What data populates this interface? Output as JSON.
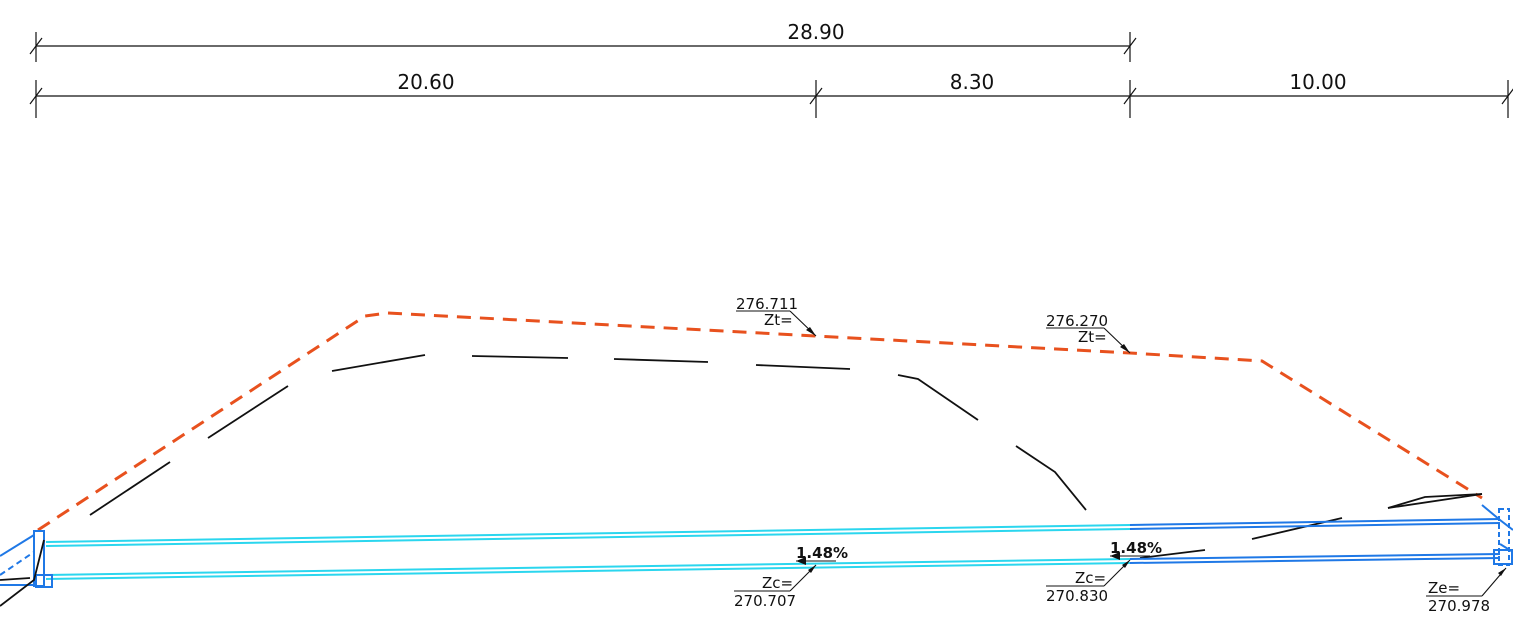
{
  "dimensions": {
    "total": "28.90",
    "seg1": "20.60",
    "seg2": "8.30",
    "seg3": "10.00"
  },
  "labels": {
    "zt1_value": "276.711",
    "zt1_label": "Zt=",
    "zt2_value": "276.270",
    "zt2_label": "Zt=",
    "slope1": "1.48%",
    "slope2": "1.48%",
    "zc1_label": "Zc=",
    "zc1_value": "270.707",
    "zc2_label": "Zc=",
    "zc2_value": "270.830",
    "ze_label": "Ze=",
    "ze_value": "270.978"
  },
  "colors": {
    "terrain": "#e8511e",
    "pipe_cyan": "#2bd6ee",
    "pipe_blue": "#1f78e6",
    "ink": "#111111"
  }
}
